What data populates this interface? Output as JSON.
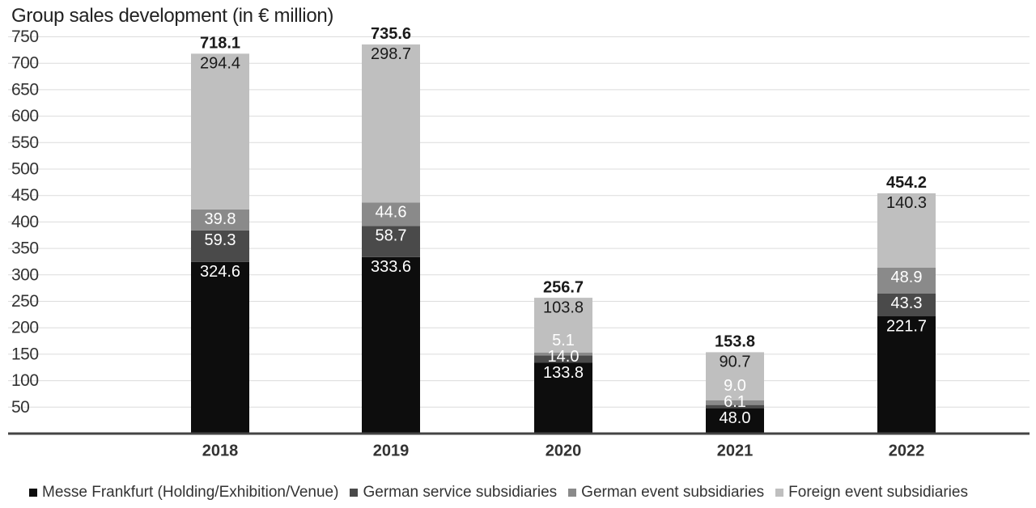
{
  "chart_data": {
    "type": "bar",
    "stacked": true,
    "title": "Group sales development (in € million)",
    "categories": [
      "2018",
      "2019",
      "2020",
      "2021",
      "2022"
    ],
    "ylim": [
      0,
      750
    ],
    "yticks": [
      50,
      100,
      150,
      200,
      250,
      300,
      350,
      400,
      450,
      500,
      550,
      600,
      650,
      700,
      750
    ],
    "grid": true,
    "legend_position": "bottom",
    "series": [
      {
        "name": "Messe Frankfurt (Holding/Exhibition/Venue)",
        "color": "#0d0d0d",
        "label_color": "#ffffff",
        "values": [
          324.6,
          333.6,
          133.8,
          48.0,
          221.7
        ]
      },
      {
        "name": "German service subsidiaries",
        "color": "#4a4a4a",
        "label_color": "#ffffff",
        "values": [
          59.3,
          58.7,
          14.0,
          6.1,
          43.3
        ]
      },
      {
        "name": "German event subsidiaries",
        "color": "#8a8a8a",
        "label_color": "#ffffff",
        "values": [
          39.8,
          44.6,
          5.1,
          9.0,
          48.9
        ]
      },
      {
        "name": "Foreign event subsidiaries",
        "color": "#bfbfbf",
        "label_color": "#1a1a1a",
        "values": [
          294.4,
          298.7,
          103.8,
          90.7,
          140.3
        ]
      }
    ],
    "totals": [
      718.1,
      735.6,
      256.7,
      153.8,
      454.2
    ]
  }
}
